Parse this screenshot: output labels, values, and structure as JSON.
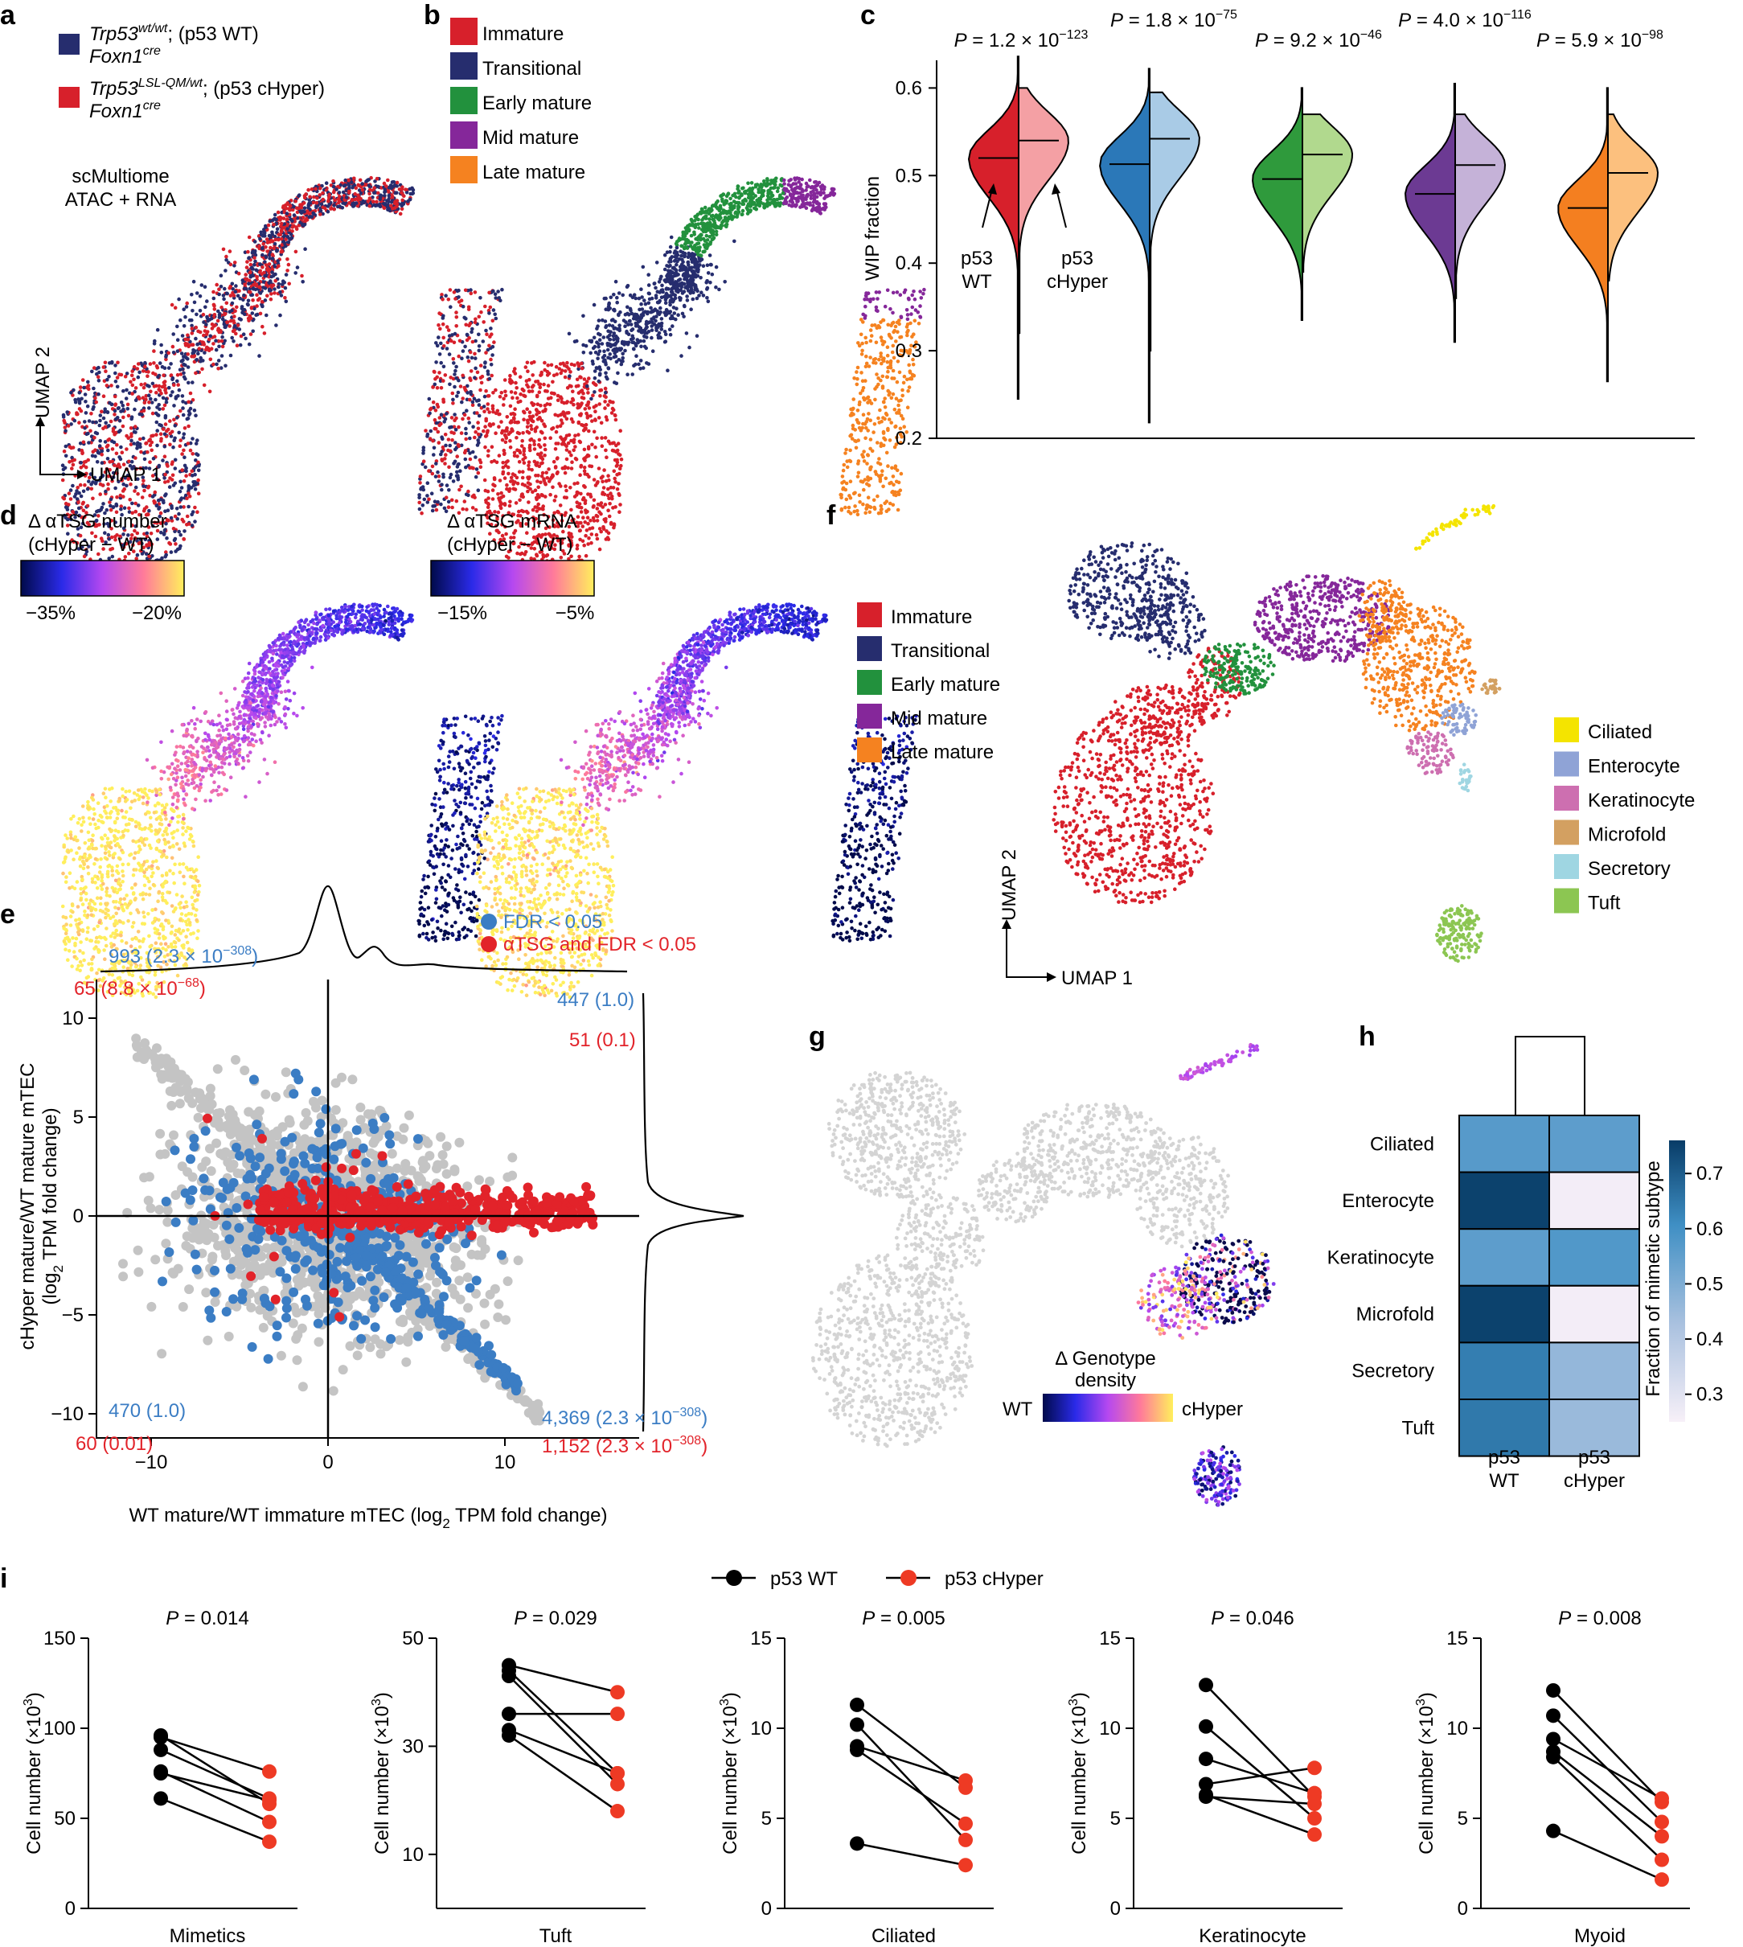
{
  "panel_a": {
    "letter": "a",
    "legend": [
      {
        "gene": "Trp53",
        "sup": "wt/wt",
        "rest": "; (p53 WT)",
        "line2": "Foxn1",
        "line2_sup": "cre",
        "color": "#262d6e"
      },
      {
        "gene": "Trp53",
        "sup": "LSL-QM/wt",
        "rest": "; (p53 cHyper)",
        "line2": "Foxn1",
        "line2_sup": "cre",
        "color": "#d7202b"
      }
    ],
    "assay_line1": "scMultiome",
    "assay_line2": "ATAC + RNA",
    "umap_x": "UMAP 1",
    "umap_y": "UMAP 2"
  },
  "panel_b": {
    "letter": "b",
    "legend": [
      {
        "label": "Immature",
        "color": "#d7202b"
      },
      {
        "label": "Transitional",
        "color": "#262d6e"
      },
      {
        "label": "Early mature",
        "color": "#22913d"
      },
      {
        "label": "Mid mature",
        "color": "#85279a"
      },
      {
        "label": "Late mature",
        "color": "#f58220"
      }
    ]
  },
  "panel_c": {
    "letter": "c",
    "ylabel": "WIP fraction",
    "yticks": [
      "0.2",
      "0.3",
      "0.4",
      "0.5",
      "0.6"
    ],
    "pvalues": [
      {
        "base": "P = 1.2 × 10",
        "exp": "−123"
      },
      {
        "base": "P = 1.8 × 10",
        "exp": "−75"
      },
      {
        "base": "P = 9.2 × 10",
        "exp": "−46"
      },
      {
        "base": "P = 4.0 × 10",
        "exp": "−116"
      },
      {
        "base": "P = 5.9 × 10",
        "exp": "−98"
      }
    ],
    "ann_wt_1": "p53",
    "ann_wt_2": "WT",
    "ann_ch_1": "p53",
    "ann_ch_2": "cHyper",
    "colors": [
      [
        "#d7202b",
        "#f4a0a4"
      ],
      [
        "#2b78b8",
        "#a9cbe6"
      ],
      [
        "#2f9a3c",
        "#b1d98e"
      ],
      [
        "#6c3a93",
        "#c5b2d8"
      ],
      [
        "#f47f20",
        "#fcc07e"
      ]
    ]
  },
  "panel_d": {
    "letter": "d",
    "left_title": "Δ αTSG number",
    "left_sub": "(cHyper − WT)",
    "left_ticks": [
      "−35%",
      "−20%"
    ],
    "right_title": "Δ αTSG mRNA",
    "right_sub": "(cHyper − WT)",
    "right_ticks": [
      "−15%",
      "−5%"
    ]
  },
  "panel_e": {
    "letter": "e",
    "legend_blue": "FDR < 0.05",
    "legend_red": "αTSG and FDR < 0.05",
    "xlabel": "WT mature/WT immature mTEC (log",
    "xlabel_sub": "2",
    "xlabel_end": " TPM fold change)",
    "ylabel_1": "cHyper mature/WT mature mTEC",
    "ylabel_2a": "(log",
    "ylabel_2sub": "2",
    "ylabel_2b": " TPM fold change)",
    "xticks": [
      "−10",
      "0",
      "10"
    ],
    "yticks": [
      "−10",
      "−5",
      "0",
      "5",
      "10"
    ],
    "counts": {
      "tl_blue": "993 (2.3 × 10",
      "tl_blue_exp": "−308",
      "tl_blue_end": ")",
      "tl_red": "65 (8.8 × 10",
      "tl_red_exp": "−68",
      "tl_red_end": ")",
      "tr_blue": "447 (1.0)",
      "tr_red": "51 (0.1)",
      "bl_blue": "470 (1.0)",
      "bl_red": "60 (0.01)",
      "br_blue": "4,369 (2.3 × 10",
      "br_blue_exp": "−308",
      "br_blue_end": ")",
      "br_red": "1,152 (2.3 × 10",
      "br_red_exp": "−308",
      "br_red_end": ")"
    },
    "blue": "#3b7dc4",
    "red": "#e2232a",
    "grey": "#c4c4c4"
  },
  "panel_f": {
    "letter": "f",
    "legend_left": [
      {
        "label": "Immature",
        "color": "#d7202b"
      },
      {
        "label": "Transitional",
        "color": "#262d6e"
      },
      {
        "label": "Early mature",
        "color": "#22913d"
      },
      {
        "label": "Mid mature",
        "color": "#85279a"
      },
      {
        "label": "Late mature",
        "color": "#f58220"
      }
    ],
    "legend_right": [
      {
        "label": "Ciliated",
        "color": "#f4e400"
      },
      {
        "label": "Enterocyte",
        "color": "#8fa3d6"
      },
      {
        "label": "Keratinocyte",
        "color": "#cd6fb0"
      },
      {
        "label": "Microfold",
        "color": "#d3a061"
      },
      {
        "label": "Secretory",
        "color": "#9fd6e2"
      },
      {
        "label": "Tuft",
        "color": "#8cc652"
      }
    ],
    "umap_x": "UMAP 1",
    "umap_y": "UMAP 2"
  },
  "panel_g": {
    "letter": "g",
    "title_1": "Δ Genotype",
    "title_2": "density",
    "left": "WT",
    "right": "cHyper"
  },
  "panel_h": {
    "letter": "h",
    "rows": [
      "Ciliated",
      "Enterocyte",
      "Keratinocyte",
      "Microfold",
      "Secretory",
      "Tuft"
    ],
    "cols": [
      [
        "p53",
        "WT"
      ],
      [
        "p53",
        "cHyper"
      ]
    ],
    "values": [
      [
        0.56,
        0.55
      ],
      [
        0.74,
        0.26
      ],
      [
        0.55,
        0.57
      ],
      [
        0.74,
        0.26
      ],
      [
        0.63,
        0.46
      ],
      [
        0.64,
        0.45
      ]
    ],
    "colorbar_label": "Fraction of mimetic subtype",
    "colorbar_ticks": [
      "0.3",
      "0.4",
      "0.5",
      "0.6",
      "0.7"
    ]
  },
  "panel_i": {
    "letter": "i",
    "legend_wt": "p53 WT",
    "legend_ch": "p53 cHyper",
    "ylabel_base": "Cell number (×10",
    "ylabel_exp": "3",
    "ylabel_end": ")",
    "wt_color": "#000000",
    "ch_color": "#ee3a24",
    "plots": [
      {
        "name": "Mimetics",
        "p": "P = 0.014",
        "yticks": [
          "0",
          "50",
          "100",
          "150"
        ],
        "ymin": 0,
        "ymax": 150,
        "wt": [
          96,
          95,
          88,
          76,
          75,
          61
        ],
        "ch": [
          58,
          76,
          61,
          48,
          60,
          37
        ]
      },
      {
        "name": "Tuft",
        "p": "P = 0.029",
        "yticks": [
          "10",
          "30",
          "50"
        ],
        "ymin": 0,
        "ymax": 50,
        "wt": [
          45,
          43,
          44,
          36,
          32,
          33
        ],
        "ch": [
          40,
          23,
          25,
          36,
          18,
          25
        ]
      },
      {
        "name": "Ciliated",
        "p": "P = 0.005",
        "yticks": [
          "0",
          "5",
          "10",
          "15"
        ],
        "ymin": 0,
        "ymax": 15,
        "wt": [
          11.3,
          10.2,
          9.0,
          8.8,
          3.6
        ],
        "ch": [
          6.7,
          3.8,
          7.1,
          4.7,
          2.4
        ]
      },
      {
        "name": "Keratinocyte",
        "p": "P = 0.046",
        "yticks": [
          "0",
          "5",
          "10",
          "15"
        ],
        "ymin": 0,
        "ymax": 15,
        "wt": [
          12.4,
          10.1,
          8.3,
          6.9,
          6.3,
          6.2
        ],
        "ch": [
          6.2,
          5.0,
          6.4,
          7.8,
          4.1,
          5.8
        ]
      },
      {
        "name": "Myoid",
        "p": "P = 0.008",
        "yticks": [
          "0",
          "5",
          "10",
          "15"
        ],
        "ymin": 0,
        "ymax": 15,
        "wt": [
          12.1,
          10.7,
          9.4,
          8.7,
          8.4,
          4.3
        ],
        "ch": [
          5.9,
          4.8,
          6.1,
          4.0,
          2.7,
          1.6
        ]
      }
    ]
  }
}
